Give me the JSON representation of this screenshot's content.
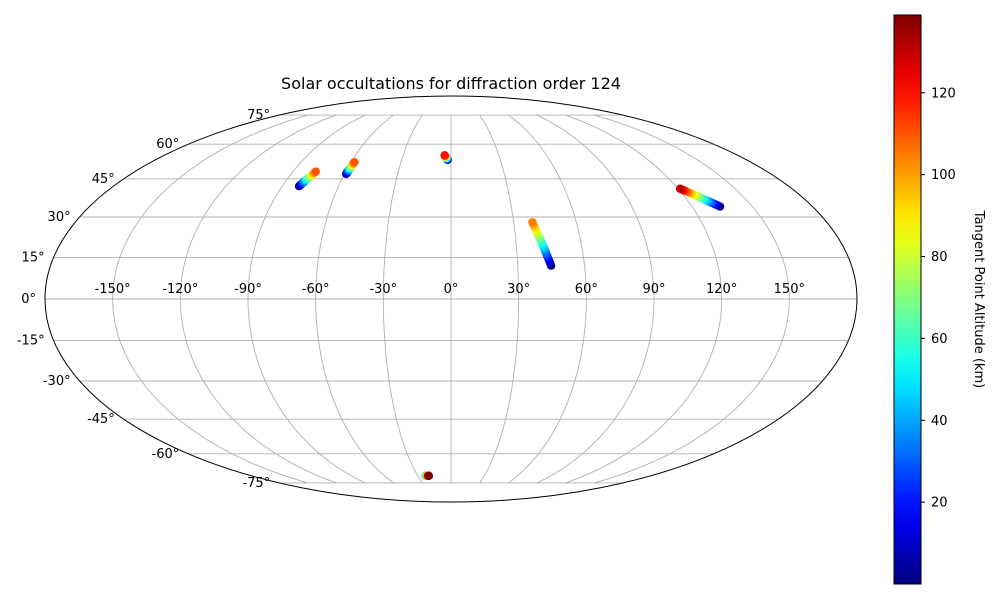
{
  "chart_data": {
    "type": "scatter",
    "projection": "mollweide",
    "title": "Solar occultations for diffraction order 124",
    "grid": true,
    "lon_ticks": [
      -150,
      -120,
      -90,
      -60,
      -30,
      0,
      30,
      60,
      90,
      120,
      150
    ],
    "lon_tick_labels": [
      "-150°",
      "-120°",
      "-90°",
      "-60°",
      "-30°",
      "0°",
      "30°",
      "60°",
      "90°",
      "120°",
      "150°"
    ],
    "lat_ticks": [
      75,
      60,
      45,
      30,
      15,
      0,
      -15,
      -30,
      -45,
      -60,
      -75
    ],
    "lat_tick_labels": [
      "75°",
      "60°",
      "45°",
      "30°",
      "15°",
      "0°",
      "-15°",
      "-30°",
      "-45°",
      "-60°",
      "-75°"
    ],
    "colorbar": {
      "label": "Tangent Point Altitude (km)",
      "colormap": "jet",
      "range": [
        0,
        139
      ],
      "ticks": [
        20,
        40,
        60,
        80,
        100,
        120
      ],
      "tick_labels": [
        "20",
        "40",
        "60",
        "80",
        "100",
        "120"
      ]
    },
    "series": [
      {
        "lon_start": -77,
        "lat_start": 48,
        "alt_start": 110,
        "lon_end": -81,
        "lat_end": 42,
        "alt_end": 0
      },
      {
        "lon_start": -58,
        "lat_start": 52,
        "alt_start": 110,
        "lon_end": -59,
        "lat_end": 47,
        "alt_end": 0
      },
      {
        "lon_start": -4,
        "lat_start": 55,
        "alt_start": 120,
        "lon_end": -2,
        "lat_end": 53,
        "alt_end": 0
      },
      {
        "lon_start": 39,
        "lat_start": 28,
        "alt_start": 105,
        "lon_end": 45,
        "lat_end": 12,
        "alt_end": 0
      },
      {
        "lon_start": 121,
        "lat_start": 41,
        "alt_start": 130,
        "lon_end": 134,
        "lat_end": 34,
        "alt_end": 0
      },
      {
        "lon_start": -23,
        "lat_start": -71,
        "alt_start": 40,
        "lon_end": -20,
        "lat_end": -71,
        "alt_end": 139
      }
    ]
  }
}
